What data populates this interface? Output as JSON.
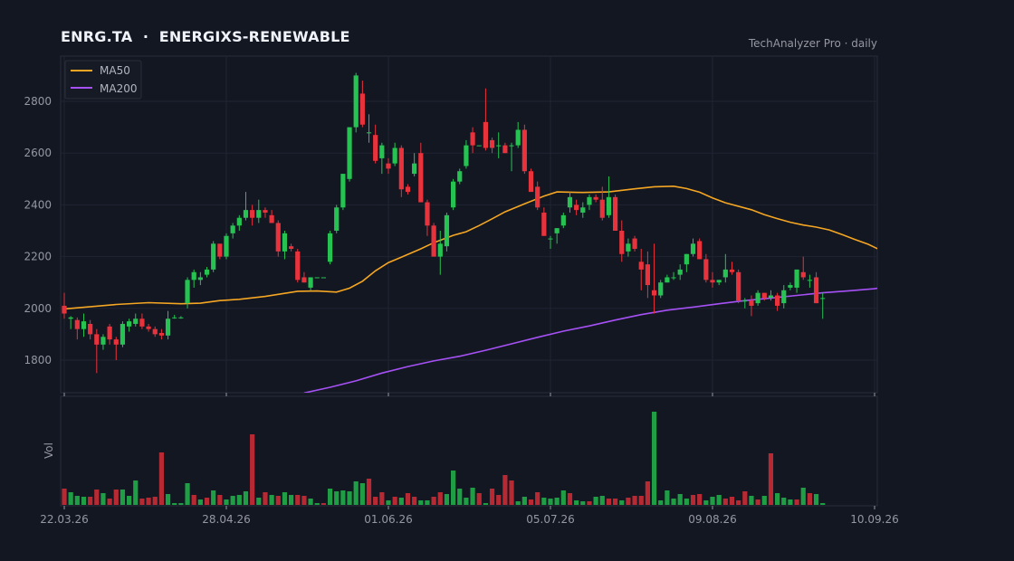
{
  "header": {
    "ticker": "ENRG.TA",
    "separator": "·",
    "name": "ENERGIXS-RENEWABLE",
    "source": "TechAnalyzer Pro · daily"
  },
  "colors": {
    "background": "#131722",
    "panel": "#131722",
    "grid": "#1f2433",
    "up": "#26c352",
    "down": "#e8323c",
    "ma50": "#f5a623",
    "ma200": "#a651f5",
    "text": "#9598a1"
  },
  "chart_data": {
    "type": "candlestick",
    "price_axis": {
      "ticks": [
        1800,
        2000,
        2200,
        2400,
        2600,
        2800
      ],
      "range": [
        1685,
        2985
      ]
    },
    "volume_axis_label": "Vol",
    "x_tick_labels": [
      "22.03.26",
      "28.04.26",
      "01.06.26",
      "05.07.26",
      "09.08.26",
      "10.09.26"
    ],
    "x_tick_index": [
      0,
      25,
      50,
      75,
      100,
      125
    ],
    "legend": {
      "position": "top-left",
      "entries": [
        "MA50",
        "MA200"
      ]
    },
    "grid": true,
    "candles": [
      [
        2010,
        2060,
        1960,
        1980
      ],
      [
        1960,
        1970,
        1920,
        1965
      ],
      [
        1955,
        1965,
        1880,
        1920
      ],
      [
        1920,
        1980,
        1890,
        1950
      ],
      [
        1940,
        1955,
        1880,
        1900
      ],
      [
        1900,
        1920,
        1750,
        1860
      ],
      [
        1860,
        1900,
        1840,
        1890
      ],
      [
        1930,
        1940,
        1860,
        1880
      ],
      [
        1880,
        1890,
        1800,
        1860
      ],
      [
        1860,
        1950,
        1850,
        1940
      ],
      [
        1930,
        1960,
        1910,
        1950
      ],
      [
        1940,
        1980,
        1930,
        1960
      ],
      [
        1960,
        1980,
        1920,
        1930
      ],
      [
        1930,
        1940,
        1910,
        1920
      ],
      [
        1920,
        1930,
        1890,
        1900
      ],
      [
        1905,
        1920,
        1880,
        1895
      ],
      [
        1895,
        1990,
        1880,
        1960
      ],
      [
        1965,
        1975,
        1960,
        1965
      ],
      [
        1965,
        1970,
        1960,
        1965
      ],
      [
        2020,
        2120,
        2000,
        2110
      ],
      [
        2110,
        2150,
        2080,
        2140
      ],
      [
        2110,
        2140,
        2090,
        2120
      ],
      [
        2130,
        2160,
        2120,
        2150
      ],
      [
        2150,
        2260,
        2140,
        2250
      ],
      [
        2250,
        2240,
        2190,
        2200
      ],
      [
        2200,
        2290,
        2190,
        2280
      ],
      [
        2290,
        2330,
        2270,
        2320
      ],
      [
        2320,
        2360,
        2300,
        2350
      ],
      [
        2350,
        2450,
        2340,
        2380
      ],
      [
        2380,
        2400,
        2320,
        2350
      ],
      [
        2350,
        2420,
        2330,
        2380
      ],
      [
        2380,
        2390,
        2350,
        2370
      ],
      [
        2360,
        2380,
        2330,
        2330
      ],
      [
        2330,
        2340,
        2200,
        2220
      ],
      [
        2220,
        2300,
        2190,
        2290
      ],
      [
        2240,
        2250,
        2220,
        2230
      ],
      [
        2220,
        2230,
        2100,
        2110
      ],
      [
        2120,
        2140,
        2100,
        2100
      ],
      [
        2080,
        2120,
        2070,
        2120
      ],
      [
        2120,
        2120,
        2120,
        2120
      ],
      [
        2120,
        2120,
        2120,
        2120
      ],
      [
        2180,
        2300,
        2170,
        2290
      ],
      [
        2300,
        2400,
        2290,
        2390
      ],
      [
        2390,
        2520,
        2380,
        2520
      ],
      [
        2500,
        2700,
        2490,
        2700
      ],
      [
        2700,
        2910,
        2680,
        2900
      ],
      [
        2830,
        2880,
        2700,
        2710
      ],
      [
        2680,
        2750,
        2640,
        2680
      ],
      [
        2670,
        2710,
        2560,
        2570
      ],
      [
        2580,
        2640,
        2520,
        2630
      ],
      [
        2560,
        2580,
        2520,
        2540
      ],
      [
        2560,
        2640,
        2550,
        2620
      ],
      [
        2620,
        2630,
        2430,
        2460
      ],
      [
        2470,
        2480,
        2440,
        2450
      ],
      [
        2520,
        2600,
        2510,
        2560
      ],
      [
        2600,
        2640,
        2410,
        2410
      ],
      [
        2410,
        2420,
        2280,
        2320
      ],
      [
        2320,
        2330,
        2200,
        2200
      ],
      [
        2200,
        2300,
        2130,
        2250
      ],
      [
        2240,
        2370,
        2220,
        2360
      ],
      [
        2390,
        2500,
        2380,
        2490
      ],
      [
        2490,
        2540,
        2480,
        2530
      ],
      [
        2550,
        2650,
        2540,
        2630
      ],
      [
        2680,
        2700,
        2600,
        2630
      ],
      [
        2630,
        2630,
        2630,
        2630
      ],
      [
        2720,
        2850,
        2610,
        2620
      ],
      [
        2650,
        2660,
        2600,
        2620
      ],
      [
        2630,
        2680,
        2580,
        2630
      ],
      [
        2630,
        2640,
        2600,
        2600
      ],
      [
        2630,
        2640,
        2530,
        2630
      ],
      [
        2630,
        2720,
        2620,
        2690
      ],
      [
        2690,
        2710,
        2520,
        2530
      ],
      [
        2530,
        2540,
        2460,
        2450
      ],
      [
        2470,
        2490,
        2380,
        2390
      ],
      [
        2370,
        2390,
        2280,
        2280
      ],
      [
        2270,
        2280,
        2230,
        2270
      ],
      [
        2290,
        2310,
        2250,
        2310
      ],
      [
        2320,
        2370,
        2310,
        2360
      ],
      [
        2390,
        2450,
        2370,
        2430
      ],
      [
        2400,
        2420,
        2360,
        2380
      ],
      [
        2370,
        2410,
        2350,
        2390
      ],
      [
        2400,
        2440,
        2380,
        2430
      ],
      [
        2430,
        2440,
        2410,
        2420
      ],
      [
        2420,
        2470,
        2340,
        2350
      ],
      [
        2360,
        2510,
        2350,
        2430
      ],
      [
        2430,
        2440,
        2300,
        2300
      ],
      [
        2300,
        2340,
        2180,
        2210
      ],
      [
        2220,
        2270,
        2200,
        2250
      ],
      [
        2270,
        2280,
        2220,
        2230
      ],
      [
        2180,
        2230,
        2070,
        2150
      ],
      [
        2170,
        2220,
        2040,
        2090
      ],
      [
        2070,
        2250,
        1980,
        2050
      ],
      [
        2050,
        2110,
        2040,
        2100
      ],
      [
        2100,
        2130,
        2100,
        2120
      ],
      [
        2120,
        2140,
        2110,
        2120
      ],
      [
        2130,
        2170,
        2110,
        2150
      ],
      [
        2170,
        2210,
        2140,
        2210
      ],
      [
        2210,
        2270,
        2200,
        2250
      ],
      [
        2260,
        2270,
        2190,
        2190
      ],
      [
        2190,
        2210,
        2100,
        2110
      ],
      [
        2110,
        2140,
        2080,
        2100
      ],
      [
        2100,
        2110,
        2090,
        2110
      ],
      [
        2120,
        2210,
        2100,
        2150
      ],
      [
        2150,
        2180,
        2130,
        2140
      ],
      [
        2140,
        2150,
        2020,
        2030
      ],
      [
        2030,
        2040,
        2000,
        2030
      ],
      [
        2030,
        2050,
        1970,
        2010
      ],
      [
        2020,
        2070,
        2010,
        2060
      ],
      [
        2060,
        2060,
        2030,
        2040
      ],
      [
        2040,
        2070,
        2030,
        2050
      ],
      [
        2050,
        2060,
        1990,
        2010
      ],
      [
        2020,
        2090,
        2000,
        2070
      ],
      [
        2080,
        2100,
        2070,
        2090
      ],
      [
        2080,
        2150,
        2060,
        2150
      ],
      [
        2140,
        2200,
        2110,
        2120
      ],
      [
        2110,
        2130,
        2080,
        2110
      ],
      [
        2120,
        2140,
        2020,
        2020
      ],
      [
        2040,
        2060,
        1960,
        2040
      ]
    ],
    "ma50": [
      [
        0,
        1998
      ],
      [
        8,
        2015
      ],
      [
        13,
        2022
      ],
      [
        18,
        2018
      ],
      [
        21,
        2020
      ],
      [
        24,
        2030
      ],
      [
        27,
        2035
      ],
      [
        31,
        2046
      ],
      [
        34,
        2058
      ],
      [
        36,
        2066
      ],
      [
        39,
        2067
      ],
      [
        42,
        2063
      ],
      [
        44,
        2078
      ],
      [
        46,
        2105
      ],
      [
        48,
        2145
      ],
      [
        50,
        2177
      ],
      [
        52,
        2198
      ],
      [
        55,
        2230
      ],
      [
        57,
        2254
      ],
      [
        60,
        2282
      ],
      [
        62,
        2296
      ],
      [
        64,
        2320
      ],
      [
        66,
        2346
      ],
      [
        68,
        2373
      ],
      [
        71,
        2404
      ],
      [
        74,
        2434
      ],
      [
        76,
        2450
      ],
      [
        80,
        2448
      ],
      [
        84,
        2450
      ],
      [
        88,
        2462
      ],
      [
        91,
        2470
      ],
      [
        94,
        2472
      ],
      [
        96,
        2463
      ],
      [
        98,
        2449
      ],
      [
        100,
        2427
      ],
      [
        102,
        2408
      ],
      [
        106,
        2381
      ],
      [
        108,
        2362
      ],
      [
        110,
        2347
      ],
      [
        112,
        2333
      ],
      [
        114,
        2322
      ],
      [
        116,
        2314
      ],
      [
        118,
        2303
      ],
      [
        120,
        2285
      ],
      [
        122,
        2266
      ],
      [
        124,
        2248
      ],
      [
        125,
        2236
      ],
      [
        127,
        2212
      ]
    ],
    "ma200": [
      [
        37,
        1673
      ],
      [
        41,
        1695
      ],
      [
        45,
        1720
      ],
      [
        49,
        1750
      ],
      [
        53,
        1775
      ],
      [
        57,
        1797
      ],
      [
        61,
        1815
      ],
      [
        65,
        1838
      ],
      [
        69,
        1863
      ],
      [
        73,
        1888
      ],
      [
        77,
        1912
      ],
      [
        81,
        1932
      ],
      [
        85,
        1955
      ],
      [
        89,
        1976
      ],
      [
        93,
        1993
      ],
      [
        97,
        2005
      ],
      [
        101,
        2018
      ],
      [
        105,
        2030
      ],
      [
        109,
        2040
      ],
      [
        113,
        2050
      ],
      [
        117,
        2060
      ],
      [
        121,
        2068
      ],
      [
        125,
        2076
      ],
      [
        127,
        2084
      ]
    ],
    "volumes": [
      [
        18,
        "down"
      ],
      [
        14,
        "up"
      ],
      [
        10,
        "up"
      ],
      [
        9,
        "up"
      ],
      [
        9,
        "down"
      ],
      [
        17,
        "down"
      ],
      [
        13,
        "up"
      ],
      [
        7,
        "down"
      ],
      [
        17,
        "down"
      ],
      [
        17,
        "up"
      ],
      [
        10,
        "up"
      ],
      [
        27,
        "up"
      ],
      [
        7,
        "down"
      ],
      [
        8,
        "down"
      ],
      [
        9,
        "down"
      ],
      [
        58,
        "down"
      ],
      [
        12,
        "up"
      ],
      [
        2,
        "up"
      ],
      [
        2,
        "up"
      ],
      [
        24,
        "up"
      ],
      [
        11,
        "down"
      ],
      [
        6,
        "up"
      ],
      [
        8,
        "down"
      ],
      [
        16,
        "up"
      ],
      [
        11,
        "down"
      ],
      [
        6,
        "up"
      ],
      [
        10,
        "up"
      ],
      [
        11,
        "up"
      ],
      [
        15,
        "up"
      ],
      [
        78,
        "down"
      ],
      [
        8,
        "up"
      ],
      [
        14,
        "down"
      ],
      [
        11,
        "up"
      ],
      [
        10,
        "down"
      ],
      [
        14,
        "up"
      ],
      [
        11,
        "up"
      ],
      [
        11,
        "down"
      ],
      [
        10,
        "down"
      ],
      [
        7,
        "up"
      ],
      [
        2,
        "up"
      ],
      [
        2,
        "down"
      ],
      [
        18,
        "up"
      ],
      [
        15,
        "up"
      ],
      [
        16,
        "up"
      ],
      [
        15,
        "up"
      ],
      [
        26,
        "up"
      ],
      [
        24,
        "up"
      ],
      [
        29,
        "down"
      ],
      [
        9,
        "down"
      ],
      [
        14,
        "down"
      ],
      [
        5,
        "up"
      ],
      [
        9,
        "down"
      ],
      [
        8,
        "up"
      ],
      [
        13,
        "down"
      ],
      [
        9,
        "down"
      ],
      [
        5,
        "up"
      ],
      [
        5,
        "up"
      ],
      [
        9,
        "down"
      ],
      [
        14,
        "down"
      ],
      [
        12,
        "up"
      ],
      [
        38,
        "up"
      ],
      [
        18,
        "up"
      ],
      [
        8,
        "up"
      ],
      [
        19,
        "up"
      ],
      [
        13,
        "down"
      ],
      [
        2,
        "up"
      ],
      [
        18,
        "down"
      ],
      [
        11,
        "down"
      ],
      [
        33,
        "down"
      ],
      [
        27,
        "down"
      ],
      [
        4,
        "up"
      ],
      [
        9,
        "up"
      ],
      [
        6,
        "down"
      ],
      [
        14,
        "down"
      ],
      [
        8,
        "up"
      ],
      [
        7,
        "up"
      ],
      [
        8,
        "up"
      ],
      [
        16,
        "up"
      ],
      [
        13,
        "down"
      ],
      [
        5,
        "up"
      ],
      [
        4,
        "up"
      ],
      [
        4,
        "down"
      ],
      [
        9,
        "up"
      ],
      [
        10,
        "up"
      ],
      [
        7,
        "down"
      ],
      [
        7,
        "down"
      ],
      [
        5,
        "up"
      ],
      [
        8,
        "down"
      ],
      [
        10,
        "down"
      ],
      [
        10,
        "down"
      ],
      [
        26,
        "down"
      ],
      [
        103,
        "up"
      ],
      [
        5,
        "up"
      ],
      [
        16,
        "up"
      ],
      [
        7,
        "up"
      ],
      [
        12,
        "up"
      ],
      [
        7,
        "up"
      ],
      [
        11,
        "down"
      ],
      [
        12,
        "down"
      ],
      [
        5,
        "up"
      ],
      [
        9,
        "up"
      ],
      [
        11,
        "up"
      ],
      [
        7,
        "down"
      ],
      [
        9,
        "down"
      ],
      [
        5,
        "down"
      ],
      [
        15,
        "down"
      ],
      [
        10,
        "up"
      ],
      [
        6,
        "down"
      ],
      [
        10,
        "up"
      ],
      [
        57,
        "down"
      ],
      [
        13,
        "up"
      ],
      [
        8,
        "up"
      ],
      [
        6,
        "up"
      ],
      [
        6,
        "down"
      ],
      [
        19,
        "up"
      ],
      [
        13,
        "down"
      ],
      [
        12,
        "up"
      ],
      [
        2,
        "up"
      ]
    ]
  }
}
